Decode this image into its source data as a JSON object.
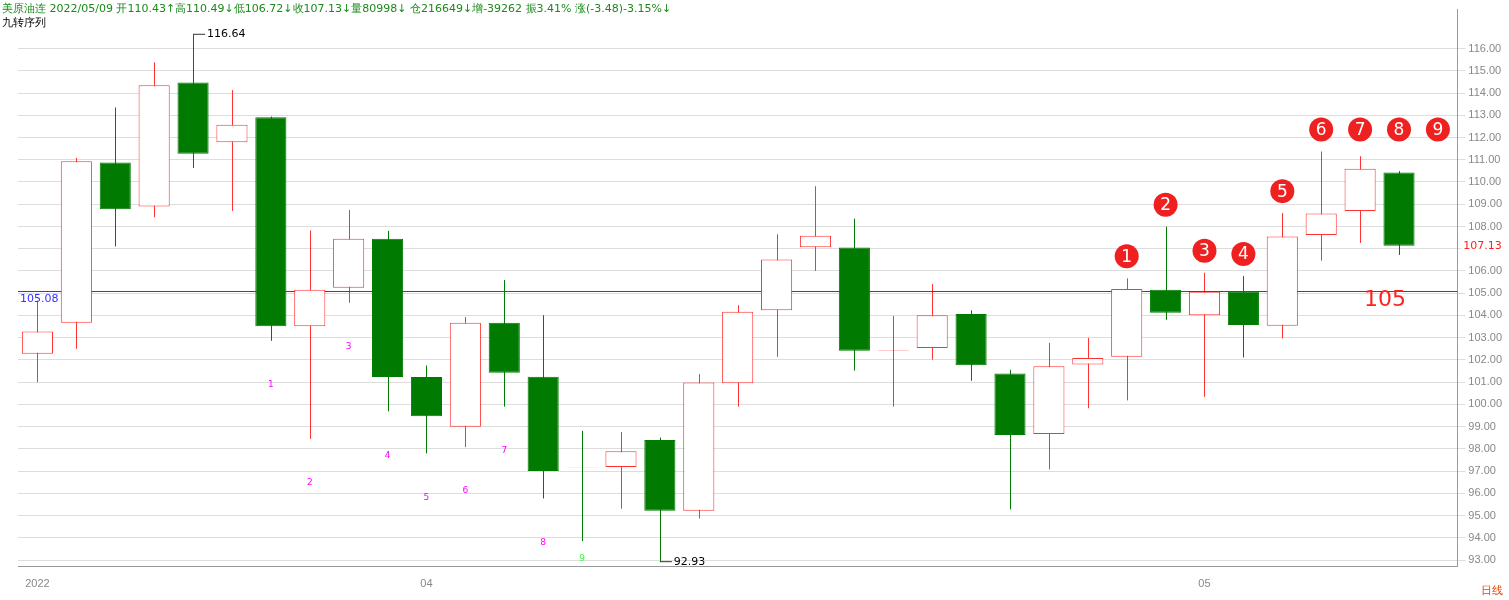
{
  "chart_data": {
    "type": "candlestick",
    "title": "美原油连 2022/05/09 开110.43↑高110.49↓低106.72↓收107.13↓量80998↓ 仓216649↓增-39262 振3.41% 涨(-3.48)-3.15%↓",
    "subtitle": "九转序列",
    "categories": [
      "2022",
      null,
      null,
      null,
      null,
      null,
      null,
      null,
      null,
      null,
      "04",
      null,
      null,
      null,
      null,
      null,
      null,
      null,
      null,
      null,
      null,
      null,
      null,
      null,
      null,
      null,
      null,
      null,
      null,
      null,
      "05",
      null,
      null,
      null,
      null,
      null,
      null
    ],
    "ohlc": [
      [
        102.28,
        104.67,
        101.0,
        103.28
      ],
      [
        103.67,
        111.08,
        102.5,
        110.93
      ],
      [
        110.88,
        113.35,
        107.1,
        108.77
      ],
      [
        108.9,
        115.38,
        108.41,
        114.35
      ],
      [
        114.47,
        116.64,
        110.63,
        111.27
      ],
      [
        111.79,
        114.13,
        108.7,
        112.57
      ],
      [
        112.91,
        112.94,
        102.86,
        103.51
      ],
      [
        103.51,
        107.82,
        98.45,
        105.16
      ],
      [
        105.24,
        108.74,
        104.57,
        107.45
      ],
      [
        107.45,
        107.8,
        99.69,
        101.23
      ],
      [
        101.23,
        101.75,
        97.8,
        99.47
      ],
      [
        99.0,
        103.93,
        98.08,
        103.67
      ],
      [
        103.67,
        105.59,
        99.9,
        101.42
      ],
      [
        101.24,
        104.01,
        95.77,
        97.01
      ],
      [
        97.18,
        98.81,
        93.85,
        97.16
      ],
      [
        97.19,
        98.76,
        95.31,
        97.89
      ],
      [
        98.4,
        98.51,
        92.93,
        95.22
      ],
      [
        95.22,
        101.36,
        94.87,
        100.98
      ],
      [
        100.95,
        104.46,
        99.9,
        104.17
      ],
      [
        104.23,
        107.65,
        102.14,
        106.52
      ],
      [
        107.07,
        109.81,
        106.0,
        107.58
      ],
      [
        107.05,
        108.35,
        101.52,
        102.41
      ],
      [
        102.41,
        103.97,
        99.9,
        102.43
      ],
      [
        102.54,
        105.41,
        102.01,
        104.01
      ],
      [
        104.07,
        104.23,
        101.06,
        101.76
      ],
      [
        101.39,
        101.56,
        95.28,
        98.63
      ],
      [
        98.67,
        102.77,
        97.08,
        101.72
      ],
      [
        101.79,
        102.99,
        99.83,
        102.09
      ],
      [
        102.14,
        105.67,
        100.18,
        105.19
      ],
      [
        105.16,
        107.99,
        103.8,
        104.12
      ],
      [
        104.01,
        105.92,
        100.34,
        105.06
      ],
      [
        105.06,
        105.77,
        102.11,
        103.57
      ],
      [
        103.54,
        108.6,
        102.97,
        107.55
      ],
      [
        107.62,
        111.37,
        106.46,
        108.58
      ],
      [
        108.7,
        111.16,
        107.26,
        110.6
      ],
      [
        110.43,
        110.49,
        106.72,
        107.13
      ],
      null
    ],
    "ylim": [
      92.7,
      117.75
    ],
    "yticks": [
      {
        "value": 93,
        "label": "93.00"
      },
      {
        "value": 94,
        "label": "94.00"
      },
      {
        "value": 95,
        "label": "95.00"
      },
      {
        "value": 96,
        "label": "96.00"
      },
      {
        "value": 97,
        "label": "97.00"
      },
      {
        "value": 98,
        "label": "98.00"
      },
      {
        "value": 99,
        "label": "99.00"
      },
      {
        "value": 100,
        "label": "100.00"
      },
      {
        "value": 101,
        "label": "101.00"
      },
      {
        "value": 102,
        "label": "102.00"
      },
      {
        "value": 103,
        "label": "103.00"
      },
      {
        "value": 104,
        "label": "104.00"
      },
      {
        "value": 105,
        "label": "105.00"
      },
      {
        "value": 106,
        "label": "106.00"
      },
      {
        "value": 107,
        "label": null
      },
      {
        "value": 108,
        "label": "108.00"
      },
      {
        "value": 109,
        "label": "109.00"
      },
      {
        "value": 110,
        "label": "110.00"
      },
      {
        "value": 111,
        "label": "111.00"
      },
      {
        "value": 112,
        "label": "112.00"
      },
      {
        "value": 113,
        "label": "113.00"
      },
      {
        "value": 114,
        "label": "114.00"
      },
      {
        "value": 115,
        "label": "115.00"
      },
      {
        "value": 116,
        "label": "116.00"
      }
    ],
    "ref_lines": [
      {
        "axis": "y",
        "value": 105.08,
        "label": "105.08",
        "color": "#3333ff"
      }
    ],
    "annotations": [
      "116.64",
      "92.93",
      "107.13",
      "105",
      "日线",
      "1",
      "2",
      "3",
      "4",
      "5",
      "6",
      "7",
      "8",
      "9",
      "1",
      "2",
      "3",
      "4",
      "5",
      "6",
      "7",
      "8",
      "9"
    ],
    "grid": "y",
    "legend": false
  }
}
